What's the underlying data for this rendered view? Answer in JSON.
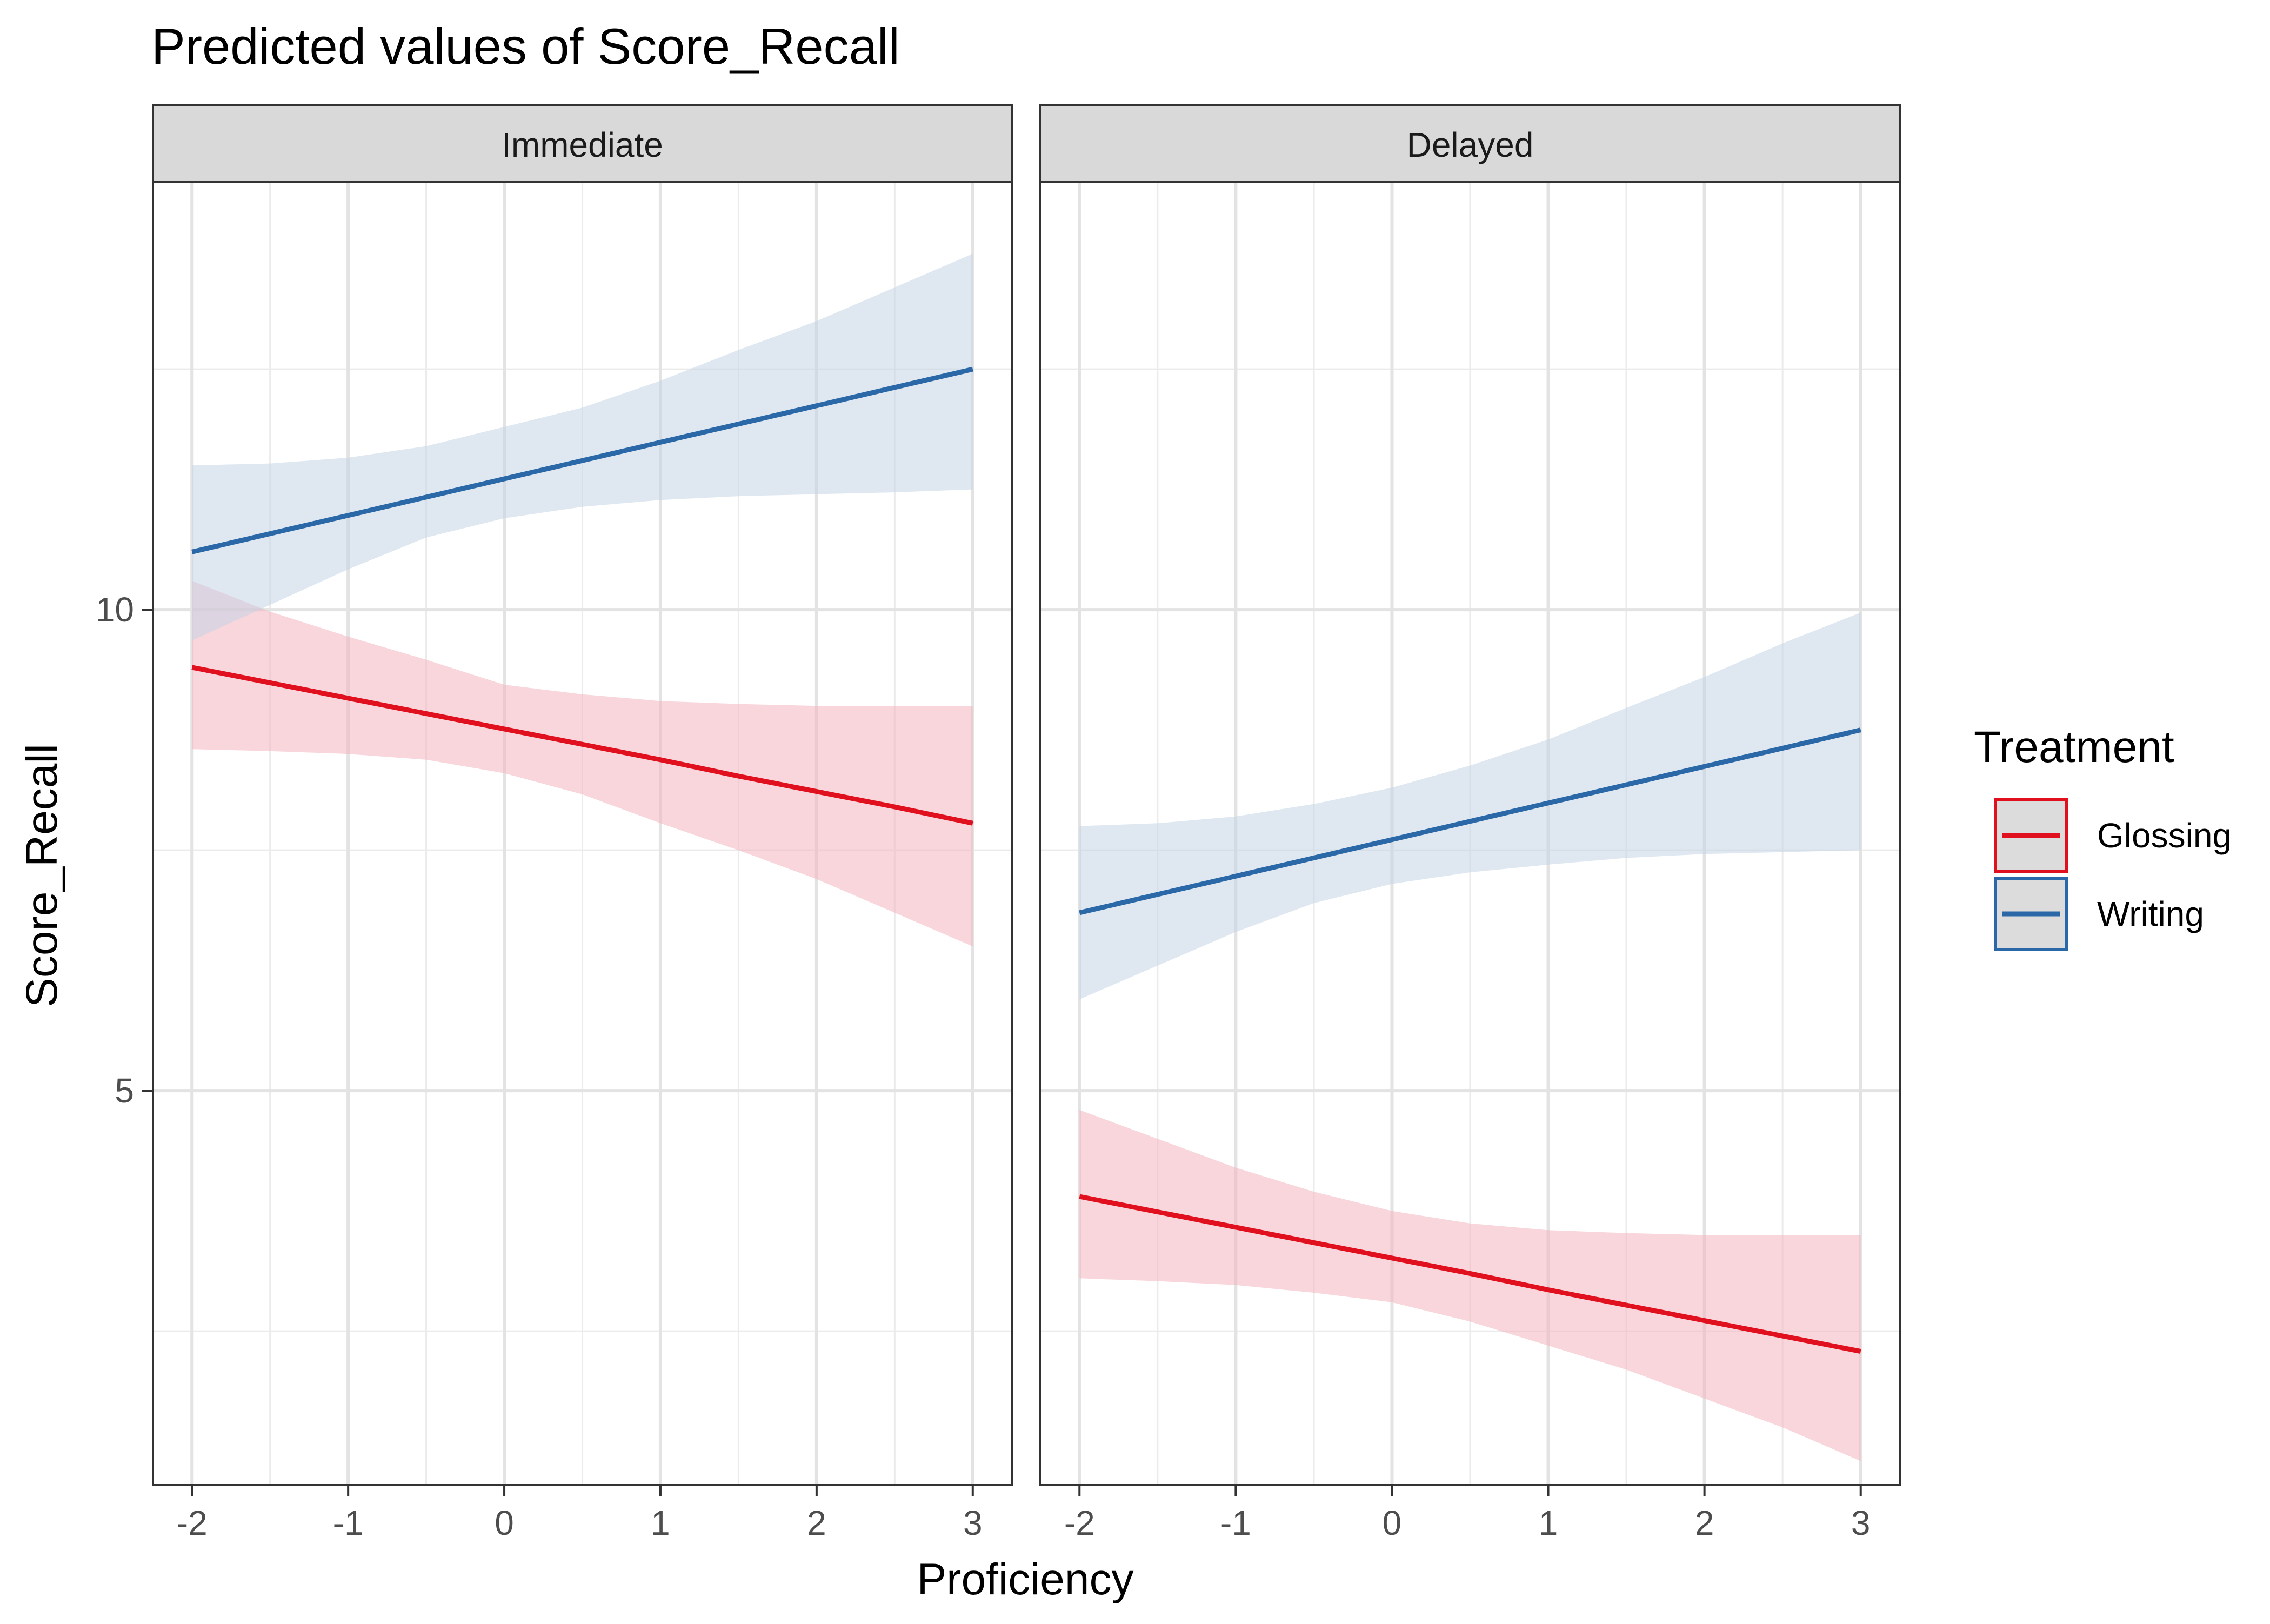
{
  "colors": {
    "Glossing": "#e0101e",
    "Writing": "#2b68a8",
    "Glossing_fill": "#f2b4bd",
    "Writing_fill": "#c5d5e6"
  },
  "chart_data": {
    "type": "line",
    "title": "Predicted values of Score_Recall",
    "xlabel": "Proficiency",
    "ylabel": "Score_Recall",
    "x_ticks": [
      "-2",
      "-1",
      "0",
      "1",
      "2",
      "3"
    ],
    "y_ticks": [
      "5",
      "10"
    ],
    "xlim": [
      -2.25,
      3.25
    ],
    "ylim": [
      0.9,
      14.45
    ],
    "grid": true,
    "legend": {
      "title": "Treatment",
      "position": "right",
      "entries": [
        "Glossing",
        "Writing"
      ]
    },
    "x": [
      -2,
      -1.5,
      -1,
      -0.5,
      0,
      0.5,
      1,
      1.5,
      2,
      2.5,
      3
    ],
    "panels": [
      {
        "name": "Immediate",
        "series": [
          {
            "name": "Glossing",
            "line": [
              9.4,
              9.24,
              9.08,
              8.92,
              8.76,
              8.6,
              8.44,
              8.27,
              8.11,
              7.95,
              7.78
            ],
            "lower": [
              8.55,
              8.53,
              8.5,
              8.44,
              8.3,
              8.08,
              7.78,
              7.5,
              7.2,
              6.85,
              6.5
            ],
            "upper": [
              10.3,
              9.98,
              9.72,
              9.48,
              9.22,
              9.12,
              9.05,
              9.02,
              9.0,
              9.0,
              9.0
            ]
          },
          {
            "name": "Writing",
            "line": [
              10.6,
              10.79,
              10.98,
              11.17,
              11.36,
              11.55,
              11.74,
              11.93,
              12.12,
              12.31,
              12.5
            ],
            "lower": [
              9.68,
              10.05,
              10.42,
              10.75,
              10.95,
              11.07,
              11.14,
              11.18,
              11.2,
              11.22,
              11.25
            ],
            "upper": [
              11.5,
              11.52,
              11.58,
              11.7,
              11.9,
              12.1,
              12.38,
              12.7,
              13.0,
              13.35,
              13.7
            ]
          }
        ]
      },
      {
        "name": "Delayed",
        "series": [
          {
            "name": "Glossing",
            "line": [
              3.9,
              3.74,
              3.58,
              3.42,
              3.26,
              3.1,
              2.93,
              2.77,
              2.61,
              2.45,
              2.29
            ],
            "lower": [
              3.05,
              3.02,
              2.98,
              2.9,
              2.8,
              2.6,
              2.35,
              2.1,
              1.8,
              1.5,
              1.15
            ],
            "upper": [
              4.8,
              4.5,
              4.2,
              3.95,
              3.75,
              3.62,
              3.55,
              3.52,
              3.5,
              3.5,
              3.5
            ]
          },
          {
            "name": "Writing",
            "line": [
              6.85,
              7.04,
              7.23,
              7.42,
              7.61,
              7.8,
              7.99,
              8.18,
              8.37,
              8.56,
              8.75
            ],
            "lower": [
              5.95,
              6.3,
              6.65,
              6.95,
              7.15,
              7.27,
              7.35,
              7.42,
              7.46,
              7.48,
              7.5
            ],
            "upper": [
              7.75,
              7.78,
              7.85,
              7.98,
              8.15,
              8.38,
              8.65,
              8.98,
              9.3,
              9.65,
              9.97
            ]
          }
        ]
      }
    ]
  }
}
